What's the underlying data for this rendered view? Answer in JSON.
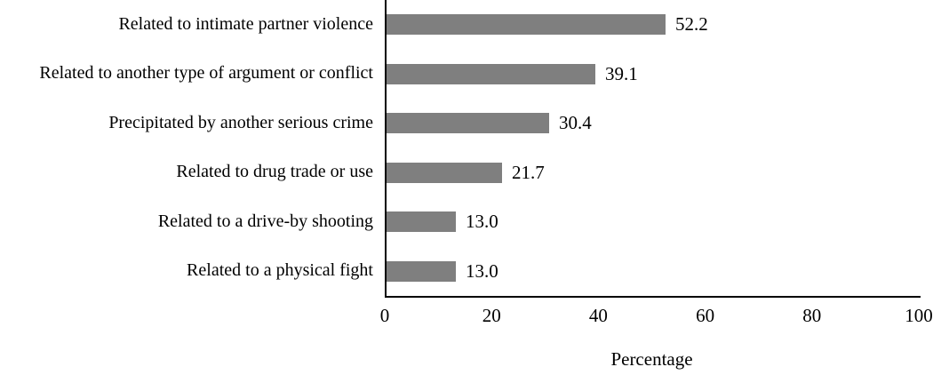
{
  "chart_data": {
    "type": "bar",
    "orientation": "horizontal",
    "categories": [
      "Related to intimate partner violence",
      "Related to another type of argument or conflict",
      "Precipitated by another serious crime",
      "Related to drug trade or use",
      "Related to a drive-by shooting",
      "Related to a physical fight"
    ],
    "values": [
      52.2,
      39.1,
      30.4,
      21.7,
      13.0,
      13.0
    ],
    "value_labels": [
      "52.2",
      "39.1",
      "30.4",
      "21.7",
      "13.0",
      "13.0"
    ],
    "title": "",
    "xlabel": "Percentage",
    "ylabel": "",
    "xlim": [
      0,
      100
    ],
    "x_ticks": [
      "0",
      "20",
      "40",
      "60",
      "80",
      "100"
    ],
    "grid": false,
    "legend": null,
    "bar_color": "#7f7f7f",
    "axis_color": "#000000",
    "text_color": "#000000"
  }
}
